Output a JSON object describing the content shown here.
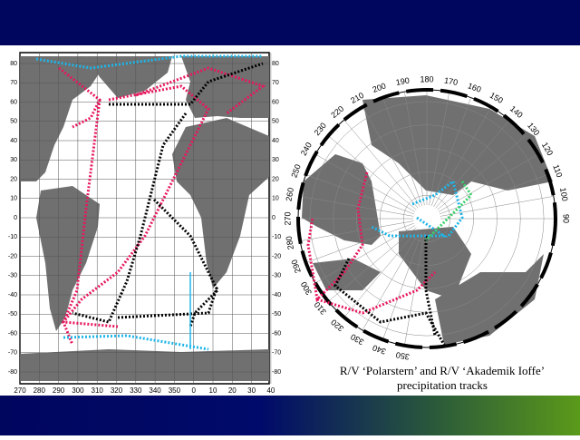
{
  "left_map": {
    "lat_labels": [
      80,
      70,
      60,
      50,
      40,
      30,
      20,
      10,
      0,
      -10,
      -20,
      -30,
      -40,
      -50,
      -60,
      -70,
      -80
    ],
    "lon_labels": [
      270,
      280,
      290,
      300,
      310,
      320,
      330,
      340,
      350,
      0,
      10,
      20,
      30,
      40
    ]
  },
  "right_map": {
    "lon_labels": [
      90,
      100,
      110,
      120,
      130,
      140,
      150,
      160,
      170,
      180,
      190,
      200,
      210,
      220,
      230,
      240,
      250,
      260,
      270,
      280,
      290,
      300,
      310,
      320,
      330,
      340,
      350
    ]
  },
  "caption": [
    "R/V ‘Polarstern’ and R/V ‘Akademik Ioffe’",
    "precipitation tracks"
  ]
}
